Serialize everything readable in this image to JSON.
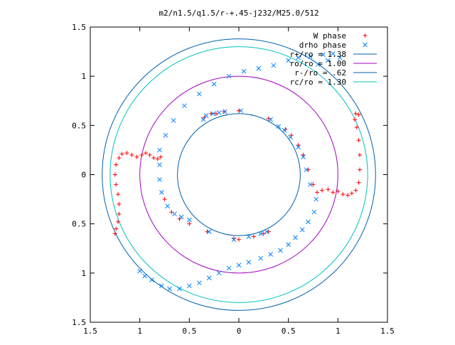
{
  "chart_data": {
    "type": "scatter",
    "title": "m2/n1.5/q1.5/r-+.45-j232/M25.0/512",
    "xlabel": "",
    "ylabel": "",
    "xlim": [
      -1.5,
      1.5
    ],
    "ylim": [
      -1.5,
      1.5
    ],
    "x_ticks": [
      -1.5,
      -1,
      -0.5,
      0,
      0.5,
      1,
      1.5
    ],
    "x_tick_labels": [
      "1.5",
      "1",
      "0.5",
      "0",
      "0.5",
      "1",
      "1.5"
    ],
    "y_ticks": [
      1.5,
      1,
      0.5,
      0,
      -0.5,
      -1,
      -1.5
    ],
    "y_tick_labels": [
      "1.5",
      "1",
      "0.5",
      "0",
      "0.5",
      "1",
      "1.5"
    ],
    "grid": false,
    "legend_position": "top-right",
    "series": [
      {
        "name": "W phase",
        "marker": "plus",
        "color": "#ff0000",
        "points": [
          [
            -1.25,
            -0.6
          ],
          [
            -1.24,
            -0.55
          ],
          [
            -1.22,
            -0.48
          ],
          [
            -1.21,
            -0.4
          ],
          [
            -1.21,
            -0.3
          ],
          [
            -1.22,
            -0.2
          ],
          [
            -1.24,
            -0.1
          ],
          [
            -1.25,
            0.0
          ],
          [
            -1.24,
            0.1
          ],
          [
            -1.21,
            0.17
          ],
          [
            -1.18,
            0.21
          ],
          [
            -1.13,
            0.22
          ],
          [
            -1.08,
            0.2
          ],
          [
            -1.03,
            0.18
          ],
          [
            -0.98,
            0.2
          ],
          [
            -0.94,
            0.22
          ],
          [
            -0.9,
            0.2
          ],
          [
            -0.86,
            0.17
          ],
          [
            -0.82,
            0.16
          ],
          [
            -0.79,
            0.18
          ],
          [
            -0.35,
            0.58
          ],
          [
            -0.28,
            0.62
          ],
          [
            -0.23,
            0.62
          ],
          [
            -0.15,
            0.64
          ],
          [
            0.0,
            0.65
          ],
          [
            0.3,
            0.57
          ],
          [
            0.47,
            0.46
          ],
          [
            0.53,
            0.4
          ],
          [
            0.6,
            0.3
          ],
          [
            0.65,
            0.2
          ],
          [
            0.7,
            0.05
          ],
          [
            0.75,
            -0.1
          ],
          [
            0.79,
            -0.18
          ],
          [
            0.84,
            -0.16
          ],
          [
            0.9,
            -0.15
          ],
          [
            0.95,
            -0.18
          ],
          [
            1.0,
            -0.17
          ],
          [
            1.05,
            -0.2
          ],
          [
            1.1,
            -0.21
          ],
          [
            1.14,
            -0.19
          ],
          [
            1.18,
            -0.16
          ],
          [
            1.21,
            -0.08
          ],
          [
            1.22,
            0.05
          ],
          [
            1.22,
            0.2
          ],
          [
            1.21,
            0.35
          ],
          [
            1.19,
            0.48
          ],
          [
            1.17,
            0.56
          ],
          [
            1.18,
            0.62
          ],
          [
            1.21,
            0.61
          ],
          [
            -0.75,
            -0.25
          ],
          [
            -0.68,
            -0.38
          ],
          [
            -0.6,
            -0.45
          ],
          [
            -0.5,
            -0.5
          ],
          [
            -0.32,
            -0.58
          ],
          [
            -0.05,
            -0.65
          ],
          [
            0.0,
            -0.66
          ],
          [
            0.15,
            -0.63
          ],
          [
            0.25,
            -0.6
          ],
          [
            0.3,
            -0.58
          ]
        ]
      },
      {
        "name": "drho phase",
        "marker": "cross",
        "color": "#0080ff",
        "points": [
          [
            -0.74,
            0.4
          ],
          [
            -0.66,
            0.55
          ],
          [
            -0.55,
            0.7
          ],
          [
            -0.4,
            0.82
          ],
          [
            -0.25,
            0.92
          ],
          [
            -0.1,
            1.0
          ],
          [
            0.05,
            1.05
          ],
          [
            0.2,
            1.08
          ],
          [
            0.35,
            1.11
          ],
          [
            0.5,
            1.16
          ],
          [
            0.6,
            1.19
          ],
          [
            0.72,
            1.2
          ],
          [
            0.85,
            1.22
          ],
          [
            0.95,
            1.23
          ],
          [
            1.02,
            1.19
          ],
          [
            0.9,
            1.16
          ],
          [
            0.8,
            1.12
          ],
          [
            -0.8,
            0.25
          ],
          [
            -0.8,
            0.1
          ],
          [
            -0.8,
            -0.05
          ],
          [
            -0.78,
            -0.18
          ],
          [
            -0.72,
            -0.32
          ],
          [
            -0.65,
            -0.4
          ],
          [
            -0.58,
            -0.43
          ],
          [
            -0.5,
            -0.46
          ],
          [
            -0.36,
            0.56
          ],
          [
            -0.33,
            0.6
          ],
          [
            -0.26,
            0.62
          ],
          [
            -0.2,
            0.63
          ],
          [
            -0.14,
            0.64
          ],
          [
            0.02,
            0.65
          ],
          [
            0.32,
            0.56
          ],
          [
            0.4,
            0.49
          ],
          [
            0.46,
            0.45
          ],
          [
            0.52,
            0.38
          ],
          [
            0.6,
            0.28
          ],
          [
            0.65,
            0.18
          ],
          [
            0.68,
            0.05
          ],
          [
            0.72,
            -0.1
          ],
          [
            0.78,
            -0.25
          ],
          [
            0.76,
            -0.38
          ],
          [
            0.7,
            -0.48
          ],
          [
            0.64,
            -0.56
          ],
          [
            0.57,
            -0.64
          ],
          [
            0.5,
            -0.71
          ],
          [
            0.42,
            -0.77
          ],
          [
            0.32,
            -0.81
          ],
          [
            0.22,
            -0.85
          ],
          [
            0.1,
            -0.89
          ],
          [
            0.0,
            -0.92
          ],
          [
            -0.1,
            -0.95
          ],
          [
            -0.2,
            -1.0
          ],
          [
            -0.3,
            -1.05
          ],
          [
            -0.4,
            -1.1
          ],
          [
            -0.5,
            -1.13
          ],
          [
            -0.6,
            -1.16
          ],
          [
            -0.7,
            -1.16
          ],
          [
            -0.78,
            -1.13
          ],
          [
            -0.88,
            -1.07
          ],
          [
            -0.95,
            -1.03
          ],
          [
            -1.0,
            -0.98
          ],
          [
            0.28,
            -0.58
          ],
          [
            0.22,
            -0.6
          ],
          [
            0.1,
            -0.63
          ],
          [
            -0.05,
            -0.66
          ],
          [
            -0.3,
            -0.58
          ]
        ]
      }
    ],
    "circles": [
      {
        "name": "r+/ro = 1.38",
        "radius": 1.38,
        "color": "#0060ad"
      },
      {
        "name": "ro/ro = 1.00",
        "radius": 1.0,
        "color": "#a000c0"
      },
      {
        "name": "r-/ro = .62",
        "radius": 0.62,
        "color": "#0060ad"
      },
      {
        "name": "rc/ro = 1.30",
        "radius": 1.3,
        "color": "#00c0c0"
      }
    ]
  }
}
